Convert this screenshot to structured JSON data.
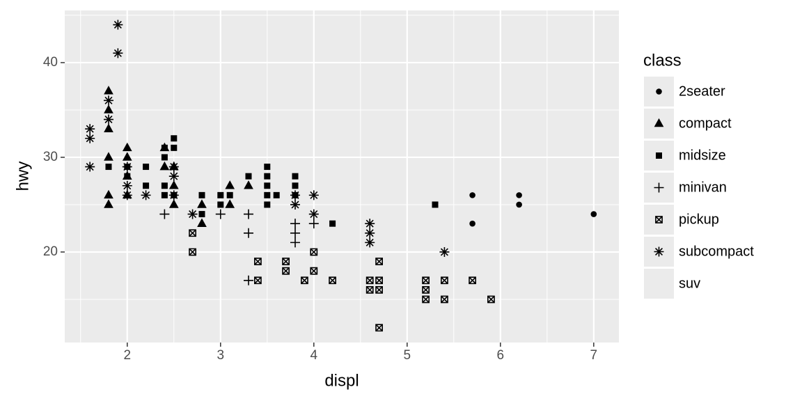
{
  "chart_data": {
    "type": "scatter",
    "x_label": "displ",
    "y_label": "hwy",
    "legend_title": "class",
    "xlim": [
      1.33,
      7.27
    ],
    "ylim": [
      10.44,
      45.51
    ],
    "xticks": [
      2,
      3,
      4,
      5,
      6,
      7
    ],
    "yticks": [
      20,
      30,
      40
    ],
    "xminor": [
      1.5,
      2.5,
      3.5,
      4.5,
      5.5,
      6.5
    ],
    "yminor": [
      15,
      25,
      35,
      45
    ],
    "grid": true,
    "legend_position": "right",
    "color": "#000000",
    "series": [
      {
        "name": "2seater",
        "shape": "circle",
        "x": [
          5.7,
          5.7,
          6.2,
          6.2,
          7.0
        ],
        "y": [
          26,
          23,
          26,
          25,
          24
        ]
      },
      {
        "name": "compact",
        "shape": "triangle",
        "x": [
          1.8,
          1.8,
          1.8,
          1.8,
          1.8,
          1.8,
          2.0,
          2.0,
          2.0,
          2.0,
          2.4,
          2.4,
          2.5,
          2.5,
          2.5,
          2.8,
          2.8,
          3.1,
          3.1,
          3.3
        ],
        "y": [
          37,
          35,
          33,
          30,
          26,
          25,
          31,
          30,
          28,
          26,
          31,
          29,
          29,
          27,
          25,
          25,
          23,
          27,
          25,
          27
        ]
      },
      {
        "name": "midsize",
        "shape": "square",
        "x": [
          1.8,
          2.0,
          2.0,
          2.2,
          2.2,
          2.4,
          2.4,
          2.4,
          2.4,
          2.5,
          2.5,
          2.5,
          2.8,
          2.8,
          3.0,
          3.0,
          3.1,
          3.3,
          3.5,
          3.5,
          3.5,
          3.5,
          3.5,
          3.6,
          3.8,
          3.8,
          3.8,
          4.2,
          5.3
        ],
        "y": [
          29,
          29,
          28,
          29,
          27,
          31,
          30,
          27,
          26,
          32,
          31,
          26,
          26,
          24,
          26,
          25,
          26,
          28,
          29,
          28,
          27,
          26,
          25,
          26,
          28,
          27,
          26,
          23,
          25
        ]
      },
      {
        "name": "minivan",
        "shape": "plus",
        "x": [
          2.4,
          3.0,
          3.3,
          3.3,
          3.3,
          3.8,
          3.8,
          3.8,
          4.0
        ],
        "y": [
          24,
          24,
          24,
          22,
          17,
          23,
          22,
          21,
          23
        ]
      },
      {
        "name": "pickup",
        "shape": "boxcross",
        "x": [
          2.7,
          2.7,
          3.4,
          3.4,
          3.7,
          3.7,
          3.9,
          4.0,
          4.0,
          4.2,
          4.6,
          4.6,
          4.7,
          4.7,
          4.7,
          4.7,
          5.2,
          5.2,
          5.2,
          5.4,
          5.4,
          5.7,
          5.9
        ],
        "y": [
          22,
          20,
          19,
          17,
          19,
          18,
          17,
          20,
          18,
          17,
          17,
          16,
          19,
          17,
          16,
          12,
          17,
          16,
          15,
          17,
          15,
          17,
          15
        ]
      },
      {
        "name": "subcompact",
        "shape": "asterisk",
        "x": [
          1.6,
          1.6,
          1.6,
          1.8,
          1.8,
          1.9,
          1.9,
          2.0,
          2.0,
          2.0,
          2.2,
          2.5,
          2.5,
          2.5,
          2.7,
          3.8,
          3.8,
          4.0,
          4.0,
          4.6,
          4.6,
          4.6,
          5.4
        ],
        "y": [
          33,
          32,
          29,
          36,
          34,
          44,
          41,
          29,
          27,
          26,
          26,
          29,
          28,
          26,
          24,
          26,
          25,
          26,
          24,
          23,
          22,
          21,
          20
        ]
      },
      {
        "name": "suv",
        "shape": null,
        "x": [],
        "y": []
      }
    ]
  }
}
